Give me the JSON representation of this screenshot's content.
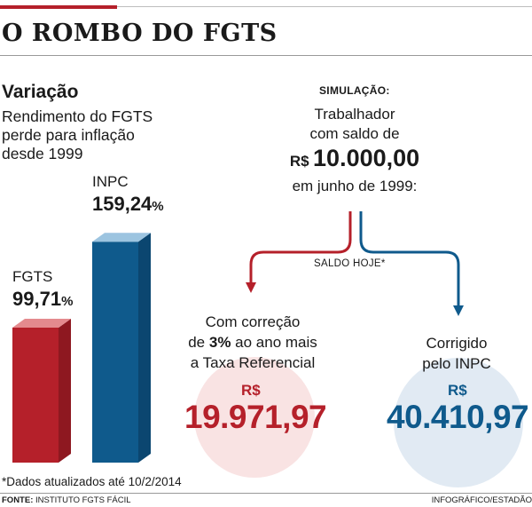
{
  "header": {
    "title": "O ROMBO DO FGTS"
  },
  "chart_data": {
    "type": "bar",
    "title": "Variação",
    "subtitle_lines": [
      "Rendimento do FGTS",
      "perde para inflação",
      "desde 1999"
    ],
    "categories": [
      "FGTS",
      "INPC"
    ],
    "values": [
      99.71,
      159.24
    ],
    "value_labels": [
      "99,71",
      "159,24"
    ],
    "unit": "%",
    "ylim": [
      0,
      160
    ],
    "colors": {
      "FGTS": "#b5202a",
      "INPC": "#0f5a8c"
    }
  },
  "simulation": {
    "label": "SIMULAÇÃO:",
    "line1": "Trabalhador",
    "line2": "com saldo de",
    "currency": "R$",
    "amount": "10.000,00",
    "line4": "em junho de 1999:",
    "saldo_label": "SALDO HOJE*",
    "left": {
      "line1": "Com correção",
      "line2_pre": "de ",
      "line2_bold": "3%",
      "line2_post": " ao ano mais",
      "line3": "a Taxa Referencial",
      "currency": "R$",
      "amount": "19.971,97",
      "color": "#b5202a"
    },
    "right": {
      "line1": "Corrigido",
      "line2": "pelo INPC",
      "currency": "R$",
      "amount": "40.410,97",
      "color": "#0f5a8c"
    }
  },
  "footnote": "*Dados atualizados até 10/2/2014",
  "source": {
    "label": "FONTE:",
    "text": " INSTITUTO FGTS FÁCIL"
  },
  "credit": "INFOGRÁFICO/ESTADÃO"
}
